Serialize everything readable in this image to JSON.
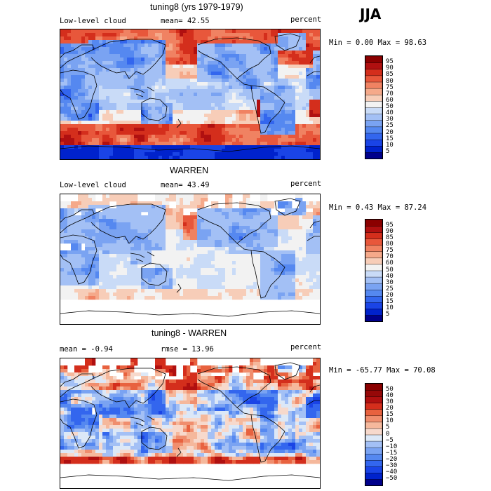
{
  "season": "JJA",
  "chart_data": [
    {
      "type": "heatmap",
      "title": "tuning8 (yrs 1979-1979)",
      "left_label": "Low-level cloud",
      "stat_label": "mean=",
      "stat_value": "42.55",
      "units": "percent",
      "range_text": "Min =    0.00 Max =   98.63",
      "min": 0.0,
      "max": 98.63,
      "mean": 42.55,
      "levels": [
        "5",
        "10",
        "15",
        "20",
        "25",
        "30",
        "40",
        "50",
        "60",
        "70",
        "75",
        "80",
        "85",
        "90",
        "95"
      ],
      "colors": [
        "#00008b",
        "#0022cc",
        "#1a44e6",
        "#3366ee",
        "#5588f0",
        "#7aa3f2",
        "#a3c0f5",
        "#c9dbf7",
        "#f2f2f2",
        "#f7cdb8",
        "#f5a98a",
        "#f08262",
        "#e8573b",
        "#d42e1c",
        "#b01010",
        "#8b0000"
      ]
    },
    {
      "type": "heatmap",
      "title": "WARREN",
      "left_label": "Low-level cloud",
      "stat_label": "mean=",
      "stat_value": "43.49",
      "units": "percent",
      "range_text": "Min =    0.43 Max =   87.24",
      "min": 0.43,
      "max": 87.24,
      "mean": 43.49,
      "levels": [
        "5",
        "10",
        "15",
        "20",
        "25",
        "30",
        "40",
        "50",
        "60",
        "70",
        "75",
        "80",
        "85",
        "90",
        "95"
      ],
      "colors": [
        "#00008b",
        "#0022cc",
        "#1a44e6",
        "#3366ee",
        "#5588f0",
        "#7aa3f2",
        "#a3c0f5",
        "#c9dbf7",
        "#f2f2f2",
        "#f7cdb8",
        "#f5a98a",
        "#f08262",
        "#e8573b",
        "#d42e1c",
        "#b01010",
        "#8b0000"
      ]
    },
    {
      "type": "heatmap",
      "title": "tuning8 - WARREN",
      "left_label": "mean =   -0.94",
      "stat_label": "rmse =",
      "stat_value": "13.96",
      "units": "percent",
      "range_text": "Min = -65.77 Max =  70.08",
      "min": -65.77,
      "max": 70.08,
      "mean": -0.94,
      "rmse": 13.96,
      "levels": [
        "−50",
        "−40",
        "−30",
        "−20",
        "−15",
        "−10",
        "−5",
        "0",
        "5",
        "10",
        "15",
        "20",
        "30",
        "40",
        "50"
      ],
      "colors": [
        "#00008b",
        "#0022cc",
        "#1a44e6",
        "#3366ee",
        "#5588f0",
        "#7aa3f2",
        "#a3c0f5",
        "#dce8f7",
        "#f7d9cc",
        "#f5b89c",
        "#f08e6e",
        "#e8623f",
        "#d42e1c",
        "#b01010",
        "#960808",
        "#8b0000"
      ]
    }
  ]
}
